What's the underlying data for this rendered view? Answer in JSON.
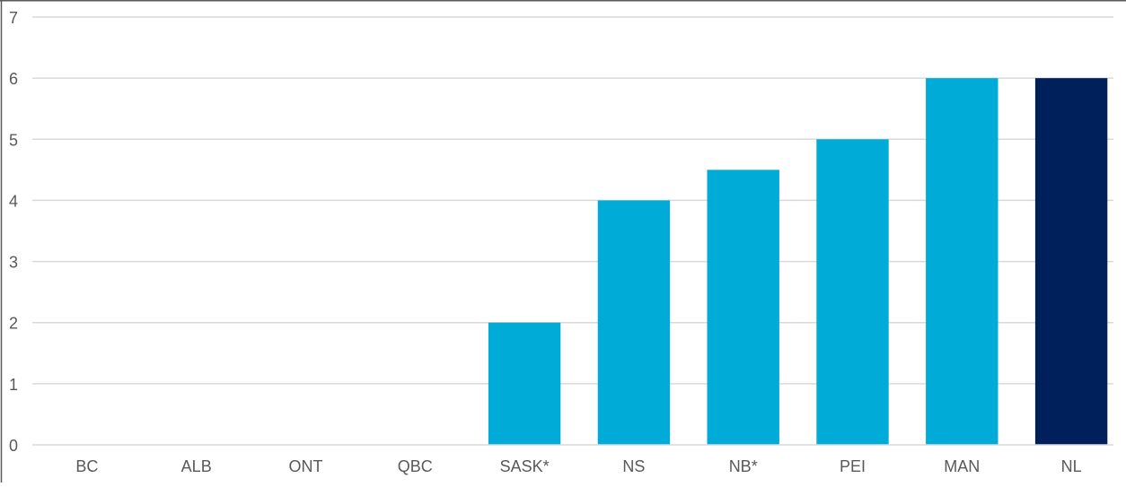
{
  "colors": {
    "bar": "#00acd7",
    "highlight_bar": "#00205b",
    "gridline": "#d9d9d9",
    "axis_line": "#595959",
    "tick_text": "#595959"
  },
  "chart_data": {
    "type": "bar",
    "title": "",
    "xlabel": "",
    "ylabel": "",
    "categories": [
      "BC",
      "ALB",
      "ONT",
      "QBC",
      "SASK*",
      "NS",
      "NB*",
      "PEI",
      "MAN",
      "NL"
    ],
    "values": [
      0,
      0,
      0,
      0,
      2,
      4,
      4.5,
      5,
      6,
      6
    ],
    "highlight_category": "NL",
    "ylim": [
      0,
      7
    ],
    "yticks": [
      0,
      1,
      2,
      3,
      4,
      5,
      6,
      7
    ],
    "grid": true,
    "legend": "none"
  }
}
